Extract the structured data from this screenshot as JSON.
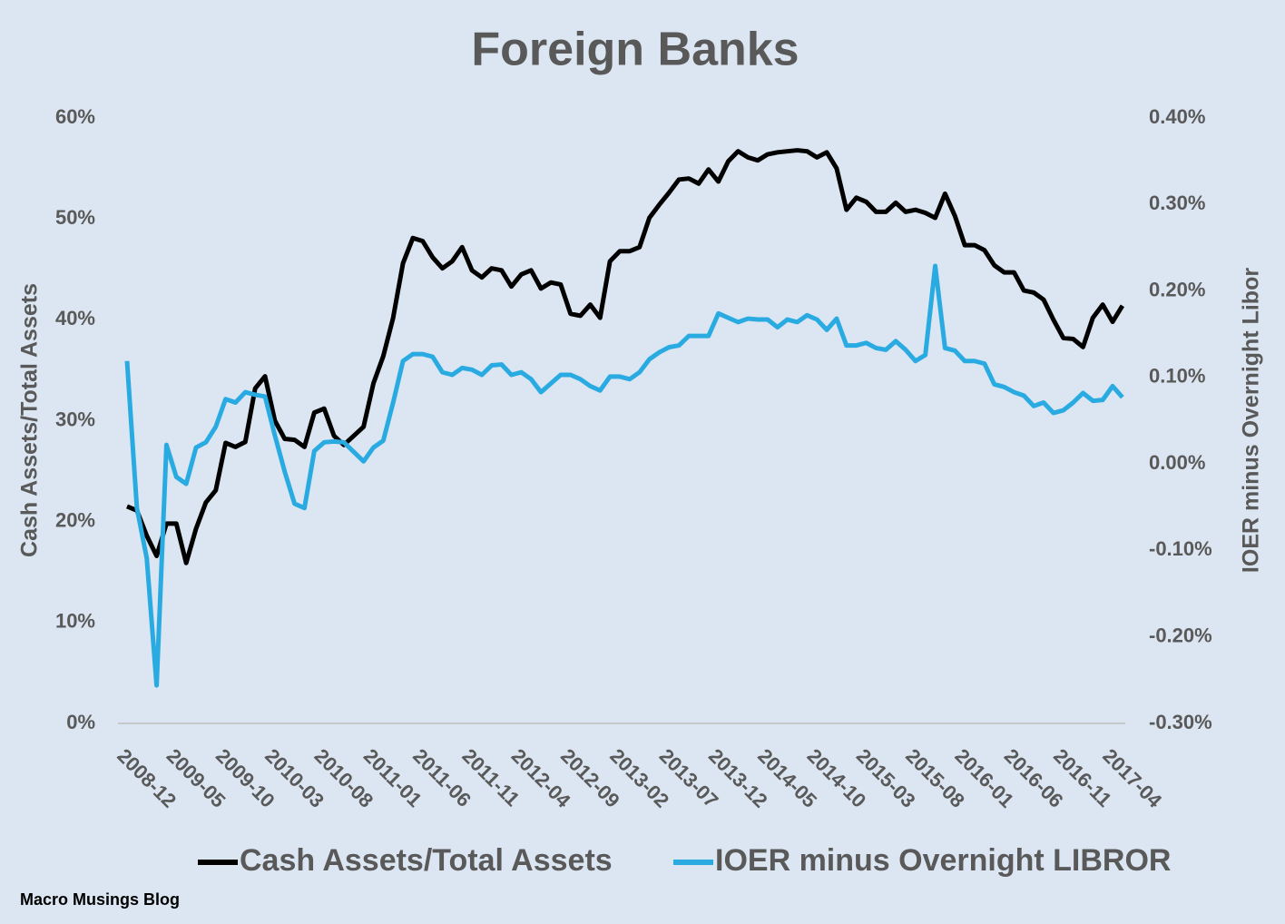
{
  "chart_data": {
    "type": "line",
    "title": "Foreign Banks",
    "y_label": "Cash Assets/Total Assets",
    "y2_label": "IOER minus Overnight  Libor",
    "source": "Macro Musings Blog",
    "legend": "bottom",
    "categories": [
      "2008-12",
      null,
      null,
      null,
      null,
      "2009-05",
      null,
      null,
      null,
      null,
      "2009-10",
      null,
      null,
      null,
      null,
      "2010-03",
      null,
      null,
      null,
      null,
      "2010-08",
      null,
      null,
      null,
      null,
      "2011-01",
      null,
      null,
      null,
      null,
      "2011-06",
      null,
      null,
      null,
      null,
      "2011-11",
      null,
      null,
      null,
      null,
      "2012-04",
      null,
      null,
      null,
      null,
      "2012-09",
      null,
      null,
      null,
      null,
      "2013-02",
      null,
      null,
      null,
      null,
      "2013-07",
      null,
      null,
      null,
      null,
      "2013-12",
      null,
      null,
      null,
      null,
      "2014-05",
      null,
      null,
      null,
      null,
      "2014-10",
      null,
      null,
      null,
      null,
      "2015-03",
      null,
      null,
      null,
      null,
      "2015-08",
      null,
      null,
      null,
      null,
      "2016-01",
      null,
      null,
      null,
      null,
      "2016-06",
      null,
      null,
      null,
      null,
      "2016-11",
      null,
      null,
      null,
      null,
      "2017-04",
      null
    ],
    "ylim": [
      0,
      60
    ],
    "yticks": [
      {
        "value": 0,
        "label": "0%"
      },
      {
        "value": 10,
        "label": "10%"
      },
      {
        "value": 20,
        "label": "20%"
      },
      {
        "value": 30,
        "label": "30%"
      },
      {
        "value": 40,
        "label": "40%"
      },
      {
        "value": 50,
        "label": "50%"
      },
      {
        "value": 60,
        "label": "60%"
      }
    ],
    "y2lim": [
      -0.3,
      0.4
    ],
    "y2ticks": [
      {
        "value": -0.3,
        "label": "-0.30%"
      },
      {
        "value": -0.2,
        "label": "-0.20%"
      },
      {
        "value": -0.1,
        "label": "-0.10%"
      },
      {
        "value": 0,
        "label": "0.00%"
      },
      {
        "value": 0.1,
        "label": "0.10%"
      },
      {
        "value": 0.2,
        "label": "0.20%"
      },
      {
        "value": 0.3,
        "label": "0.30%"
      },
      {
        "value": 0.4,
        "label": "0.40%"
      }
    ],
    "series": [
      {
        "name": "Cash Assets/Total Assets",
        "color": "#000000",
        "axis": "y",
        "values": [
          21.5,
          21.1,
          18.6,
          16.6,
          19.8,
          19.8,
          15.9,
          19.3,
          21.9,
          23.1,
          27.8,
          27.4,
          27.9,
          33.2,
          34.4,
          30.0,
          28.2,
          28.1,
          27.4,
          30.8,
          31.2,
          28.5,
          27.6,
          28.5,
          29.4,
          33.7,
          36.4,
          40.2,
          45.6,
          48.1,
          47.8,
          46.2,
          45.1,
          45.8,
          47.2,
          44.9,
          44.2,
          45.1,
          44.9,
          43.3,
          44.5,
          44.9,
          43.1,
          43.7,
          43.5,
          40.6,
          40.4,
          41.5,
          40.2,
          45.8,
          46.8,
          46.8,
          47.2,
          50.1,
          51.4,
          52.6,
          53.9,
          54.0,
          53.5,
          54.9,
          53.7,
          55.7,
          56.7,
          56.1,
          55.8,
          56.4,
          56.6,
          56.7,
          56.8,
          56.7,
          56.1,
          56.6,
          55.0,
          50.9,
          52.1,
          51.7,
          50.7,
          50.7,
          51.6,
          50.7,
          50.9,
          50.6,
          50.1,
          52.5,
          50.3,
          47.4,
          47.4,
          46.9,
          45.4,
          44.7,
          44.7,
          42.9,
          42.7,
          42.0,
          40.0,
          38.2,
          38.1,
          37.3,
          40.2,
          41.5,
          39.8,
          41.4
        ]
      },
      {
        "name": "IOER minus Overnight LIBROR",
        "color": "#29abe2",
        "axis": "y2",
        "values": [
          0.119,
          -0.051,
          -0.109,
          -0.256,
          0.022,
          -0.015,
          -0.023,
          0.019,
          0.025,
          0.043,
          0.075,
          0.071,
          0.083,
          0.08,
          0.078,
          0.033,
          -0.009,
          -0.046,
          -0.051,
          0.015,
          0.025,
          0.026,
          0.025,
          0.014,
          0.003,
          0.019,
          0.027,
          0.071,
          0.119,
          0.127,
          0.127,
          0.124,
          0.106,
          0.103,
          0.111,
          0.109,
          0.103,
          0.114,
          0.115,
          0.103,
          0.106,
          0.098,
          0.083,
          0.093,
          0.103,
          0.103,
          0.098,
          0.09,
          0.085,
          0.101,
          0.101,
          0.098,
          0.106,
          0.121,
          0.129,
          0.135,
          0.137,
          0.148,
          0.148,
          0.148,
          0.174,
          0.169,
          0.164,
          0.168,
          0.167,
          0.167,
          0.158,
          0.167,
          0.164,
          0.172,
          0.167,
          0.155,
          0.168,
          0.137,
          0.137,
          0.14,
          0.134,
          0.132,
          0.142,
          0.132,
          0.119,
          0.126,
          0.229,
          0.134,
          0.131,
          0.119,
          0.119,
          0.116,
          0.092,
          0.089,
          0.083,
          0.079,
          0.067,
          0.071,
          0.059,
          0.062,
          0.071,
          0.082,
          0.073,
          0.074,
          0.09,
          0.077
        ]
      }
    ]
  }
}
